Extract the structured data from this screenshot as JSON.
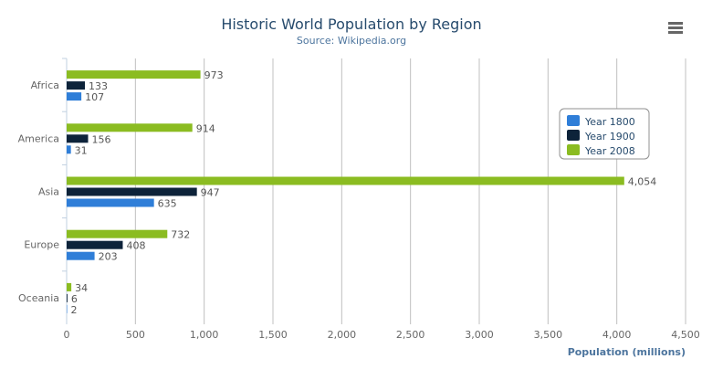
{
  "menu_icon": "hamburger-menu-icon",
  "chart_data": {
    "type": "bar",
    "orientation": "horizontal",
    "title": "Historic World Population by Region",
    "subtitle": "Source: Wikipedia.org",
    "xlabel": "",
    "ylabel": "Population (millions)",
    "categories": [
      "Africa",
      "America",
      "Asia",
      "Europe",
      "Oceania"
    ],
    "series": [
      {
        "name": "Year 1800",
        "color": "#2f7ed8",
        "values": [
          107,
          31,
          635,
          203,
          2
        ],
        "labels": [
          "107",
          "31",
          "635",
          "203",
          "2"
        ]
      },
      {
        "name": "Year 1900",
        "color": "#0d233a",
        "values": [
          133,
          156,
          947,
          408,
          6
        ],
        "labels": [
          "133",
          "156",
          "947",
          "408",
          "6"
        ]
      },
      {
        "name": "Year 2008",
        "color": "#8bbc21",
        "values": [
          973,
          914,
          4054,
          732,
          34
        ],
        "labels": [
          "973",
          "914",
          "4,054",
          "732",
          "34"
        ]
      }
    ],
    "ylim": [
      0,
      4500
    ],
    "ticks": [
      "0",
      "500",
      "1,000",
      "1,500",
      "2,000",
      "2,500",
      "3,000",
      "3,500",
      "4,000",
      "4,500"
    ],
    "grid": true,
    "legend_placement": "right",
    "data_labels": true
  }
}
